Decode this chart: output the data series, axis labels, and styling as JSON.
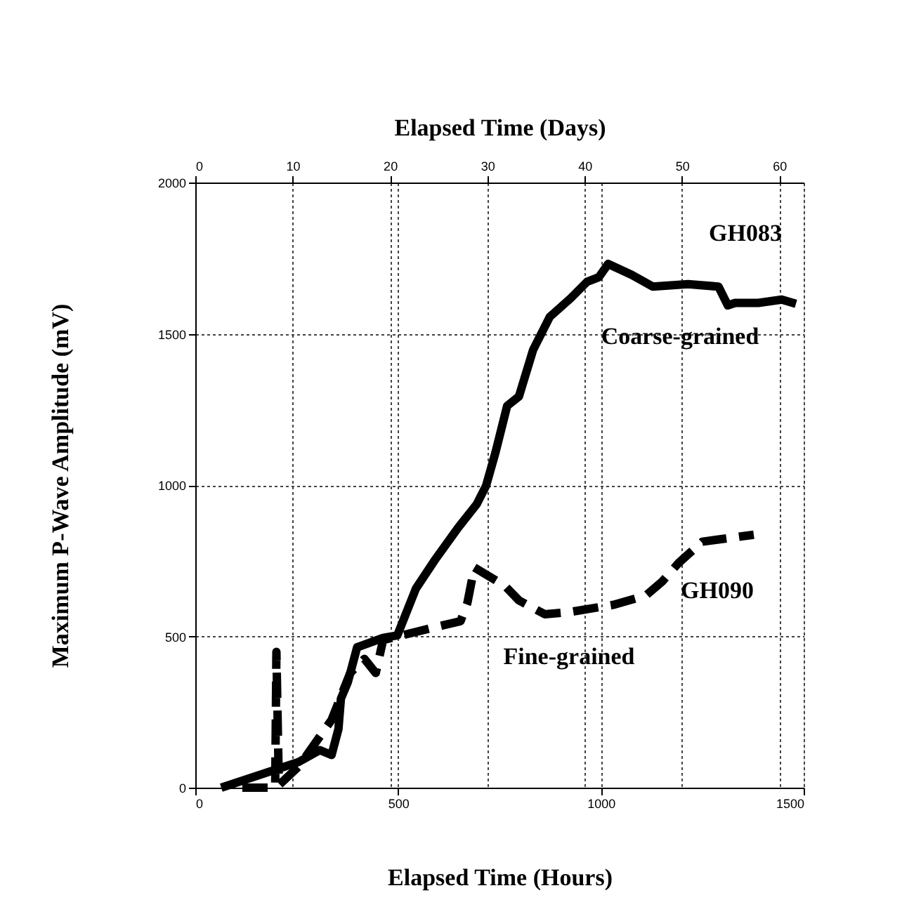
{
  "chart_data": {
    "type": "line",
    "xlabel": "Elapsed Time (Hours)",
    "ylabel": "Maximum P-Wave Amplitude (mV)",
    "x2label": "Elapsed Time (Days)",
    "xlim": [
      0,
      1500
    ],
    "xticks": [
      0,
      500,
      1000,
      1500
    ],
    "ylim": [
      0,
      2000
    ],
    "yticks": [
      0,
      500,
      1000,
      1500,
      2000
    ],
    "x2lim": [
      0,
      62.5
    ],
    "x2ticks": [
      0,
      10,
      20,
      30,
      40,
      50,
      60
    ],
    "grid": true,
    "series": [
      {
        "name": "GH083",
        "color": "#000000",
        "line_style": "solid",
        "x": [
          64,
          255,
          307,
          336,
          353,
          359,
          376,
          399,
          463,
          498,
          544,
          590,
          648,
          694,
          717,
          740,
          769,
          798,
          833,
          874,
          926,
          966,
          995,
          1018,
          1076,
          1128,
          1215,
          1290,
          1313,
          1331,
          1388,
          1446,
          1481
        ],
        "values": [
          0,
          85,
          124,
          108,
          194,
          294,
          348,
          464,
          495,
          503,
          658,
          751,
          859,
          937,
          998,
          1107,
          1262,
          1293,
          1447,
          1556,
          1618,
          1672,
          1687,
          1731,
          1695,
          1656,
          1664,
          1656,
          1594,
          1602,
          1602,
          1613,
          1599
        ]
      },
      {
        "name": "GH090",
        "color": "#000000",
        "line_style": "dashed",
        "x": [
          116,
          197,
          200,
          206,
          255,
          336,
          382,
          417,
          445,
          463,
          602,
          654,
          671,
          688,
          764,
          798,
          862,
          926,
          1030,
          1111,
          1151,
          1192,
          1250,
          1377
        ],
        "values": [
          0,
          0,
          449,
          8,
          70,
          224,
          379,
          426,
          379,
          488,
          534,
          550,
          611,
          728,
          666,
          619,
          573,
          581,
          604,
          635,
          681,
          743,
          813,
          836
        ]
      }
    ],
    "annotations": [
      "Coarse-grained",
      "Fine-grained"
    ]
  }
}
